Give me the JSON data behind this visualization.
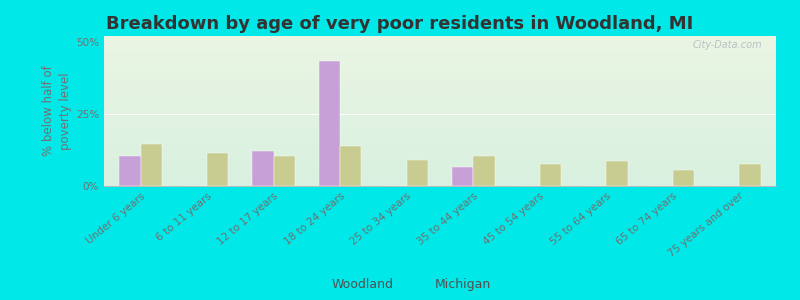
{
  "title": "Breakdown by age of very poor residents in Woodland, MI",
  "ylabel": "% below half of\npoverty level",
  "categories": [
    "Under 6 years",
    "6 to 11 years",
    "12 to 17 years",
    "18 to 24 years",
    "25 to 34 years",
    "35 to 44 years",
    "45 to 54 years",
    "55 to 64 years",
    "65 to 74 years",
    "75 years and over"
  ],
  "woodland_values": [
    10.5,
    0,
    12.0,
    43.5,
    0,
    6.5,
    0,
    0,
    0,
    0
  ],
  "michigan_values": [
    14.5,
    11.5,
    10.5,
    14.0,
    9.0,
    10.5,
    7.5,
    8.5,
    5.5,
    7.5
  ],
  "woodland_color": "#c8a0d8",
  "michigan_color": "#c8cc90",
  "background_outer": "#00e8e8",
  "background_plot_top": "#eaf5e2",
  "background_plot_bottom": "#d8f0e0",
  "ylim": [
    0,
    52
  ],
  "yticks": [
    0,
    25,
    50
  ],
  "ytick_labels": [
    "0%",
    "25%",
    "50%"
  ],
  "bar_width": 0.32,
  "title_fontsize": 13,
  "axis_label_fontsize": 8.5,
  "tick_fontsize": 7.5,
  "legend_labels": [
    "Woodland",
    "Michigan"
  ],
  "watermark": "City-Data.com"
}
